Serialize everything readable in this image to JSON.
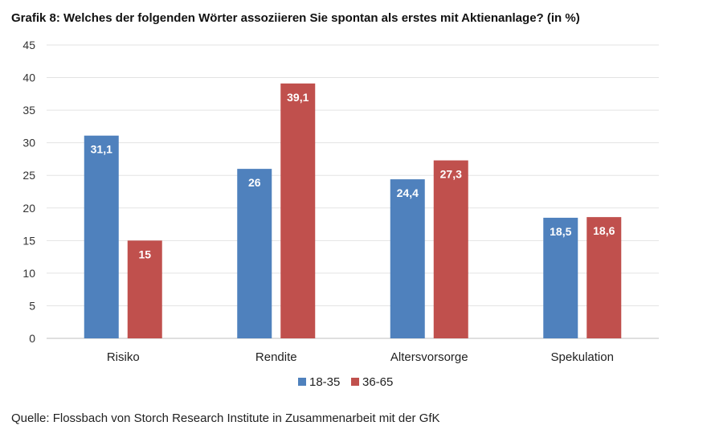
{
  "title": "Grafik 8: Welches der folgenden Wörter assoziieren Sie spontan als erstes mit Aktienanlage? (in %)",
  "source": "Quelle: Flossbach von Storch Research Institute in Zusammenarbeit mit der GfK",
  "chart_data": {
    "type": "bar",
    "title": "Grafik 8: Welches der folgenden Wörter assoziieren Sie spontan als erstes mit Aktienanlage? (in %)",
    "categories": [
      "Risiko",
      "Rendite",
      "Altersvorsorge",
      "Spekulation"
    ],
    "series": [
      {
        "name": "18-35",
        "color": "#4f81bd",
        "values": [
          31.1,
          26,
          24.4,
          18.5
        ],
        "labels": [
          "31,1",
          "26",
          "24,4",
          "18,5"
        ]
      },
      {
        "name": "36-65",
        "color": "#c0504d",
        "values": [
          15,
          39.1,
          27.3,
          18.6
        ],
        "labels": [
          "15",
          "39,1",
          "27,3",
          "18,6"
        ]
      }
    ],
    "ylim": [
      0,
      45
    ],
    "yticks": [
      0,
      5,
      10,
      15,
      20,
      25,
      30,
      35,
      40,
      45
    ],
    "xlabel": "",
    "ylabel": "",
    "grid": true,
    "legend": "bottom-center"
  }
}
